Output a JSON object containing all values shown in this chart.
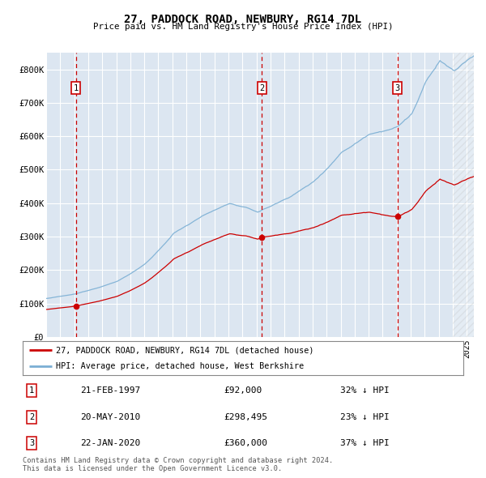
{
  "title": "27, PADDOCK ROAD, NEWBURY, RG14 7DL",
  "subtitle": "Price paid vs. HM Land Registry's House Price Index (HPI)",
  "fig_bg_color": "#ffffff",
  "plot_bg_color": "#dce6f1",
  "red_line_label": "27, PADDOCK ROAD, NEWBURY, RG14 7DL (detached house)",
  "blue_line_label": "HPI: Average price, detached house, West Berkshire",
  "sale_points": [
    {
      "label": "1",
      "date_x": 1997.12,
      "price": 92000,
      "date_str": "21-FEB-1997",
      "price_str": "£92,000",
      "hpi_str": "32% ↓ HPI"
    },
    {
      "label": "2",
      "date_x": 2010.38,
      "price": 298495,
      "date_str": "20-MAY-2010",
      "price_str": "£298,495",
      "hpi_str": "23% ↓ HPI"
    },
    {
      "label": "3",
      "date_x": 2020.05,
      "price": 360000,
      "date_str": "22-JAN-2020",
      "price_str": "£360,000",
      "hpi_str": "37% ↓ HPI"
    }
  ],
  "ylabel_ticks": [
    0,
    100000,
    200000,
    300000,
    400000,
    500000,
    600000,
    700000,
    800000
  ],
  "ylabel_labels": [
    "£0",
    "£100K",
    "£200K",
    "£300K",
    "£400K",
    "£500K",
    "£600K",
    "£700K",
    "£800K"
  ],
  "ylim": [
    0,
    850000
  ],
  "xlim_start": 1995.0,
  "xlim_end": 2025.5,
  "hatch_start": 2024.0,
  "footer": "Contains HM Land Registry data © Crown copyright and database right 2024.\nThis data is licensed under the Open Government Licence v3.0.",
  "red_color": "#cc0000",
  "blue_color": "#7bafd4",
  "grid_color": "#ffffff",
  "border_color": "#cc0000",
  "title_fontsize": 10,
  "subtitle_fontsize": 8
}
